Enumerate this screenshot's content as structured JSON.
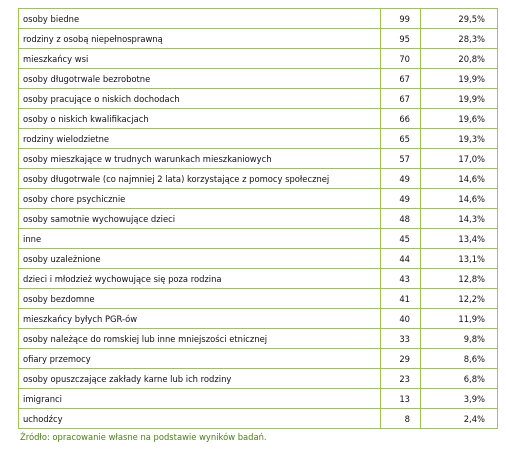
{
  "table": {
    "rows": [
      [
        "osoby biedne",
        99,
        "29,5%"
      ],
      [
        "rodziny z osobą niepełnosprawną",
        95,
        "28,3%"
      ],
      [
        "mieszkańcy wsi",
        70,
        "20,8%"
      ],
      [
        "osoby długotrwale bezrobotne",
        67,
        "19,9%"
      ],
      [
        "osoby pracujące o niskich dochodach",
        67,
        "19,9%"
      ],
      [
        "osoby o niskich kwalifikacjach",
        66,
        "19,6%"
      ],
      [
        "rodziny wielodzietne",
        65,
        "19,3%"
      ],
      [
        "osoby mieszkające w trudnych warunkach mieszkaniowych",
        57,
        "17,0%"
      ],
      [
        "osoby długotrwale (co najmniej 2 lata) korzystające z pomocy społecznej",
        49,
        "14,6%"
      ],
      [
        "osoby chore psychicznie",
        49,
        "14,6%"
      ],
      [
        "osoby samotnie wychowujące dzieci",
        48,
        "14,3%"
      ],
      [
        "inne",
        45,
        "13,4%"
      ],
      [
        "osoby uzależnione",
        44,
        "13,1%"
      ],
      [
        "dzieci i młodzież wychowujące się poza rodzina",
        43,
        "12,8%"
      ],
      [
        "osoby bezdomne",
        41,
        "12,2%"
      ],
      [
        "mieszkańcy byłych PGR-ów",
        40,
        "11,9%"
      ],
      [
        "osoby należące do romskiej lub inne mniejszości etnicznej",
        33,
        "9,8%"
      ],
      [
        "ofiary przemocy",
        29,
        "8,6%"
      ],
      [
        "osoby opuszczające zakłady karne lub ich rodziny",
        23,
        "6,8%"
      ],
      [
        "imigranci",
        13,
        "3,9%"
      ],
      [
        "uchodźcy",
        8,
        "2,4%"
      ]
    ]
  },
  "source": "Źródło: opracowanie własne na podstawie wyników badań."
}
